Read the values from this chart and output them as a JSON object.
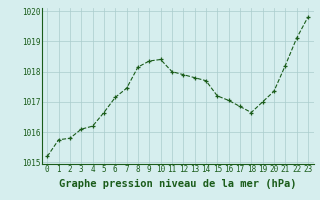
{
  "x": [
    0,
    1,
    2,
    3,
    4,
    5,
    6,
    7,
    8,
    9,
    10,
    11,
    12,
    13,
    14,
    15,
    16,
    17,
    18,
    19,
    20,
    21,
    22,
    23
  ],
  "y": [
    1015.2,
    1015.75,
    1015.8,
    1016.1,
    1016.2,
    1016.65,
    1017.15,
    1017.45,
    1018.15,
    1018.35,
    1018.4,
    1018.0,
    1017.9,
    1017.8,
    1017.7,
    1017.2,
    1017.05,
    1016.85,
    1016.65,
    1017.0,
    1017.35,
    1018.2,
    1019.1,
    1019.8
  ],
  "xlabel": "Graphe pression niveau de la mer (hPa)",
  "ylim": [
    1015.0,
    1020.0
  ],
  "xlim": [
    -0.5,
    23.5
  ],
  "yticks": [
    1015,
    1016,
    1017,
    1018,
    1019,
    1020
  ],
  "xticks": [
    0,
    1,
    2,
    3,
    4,
    5,
    6,
    7,
    8,
    9,
    10,
    11,
    12,
    13,
    14,
    15,
    16,
    17,
    18,
    19,
    20,
    21,
    22,
    23
  ],
  "line_color": "#1a5c1a",
  "marker_color": "#1a5c1a",
  "bg_color": "#d6eeee",
  "grid_color": "#aacccc",
  "xlabel_fontsize": 7.5,
  "tick_fontsize": 5.5,
  "xlabel_color": "#1a5c1a",
  "tick_color": "#1a5c1a"
}
